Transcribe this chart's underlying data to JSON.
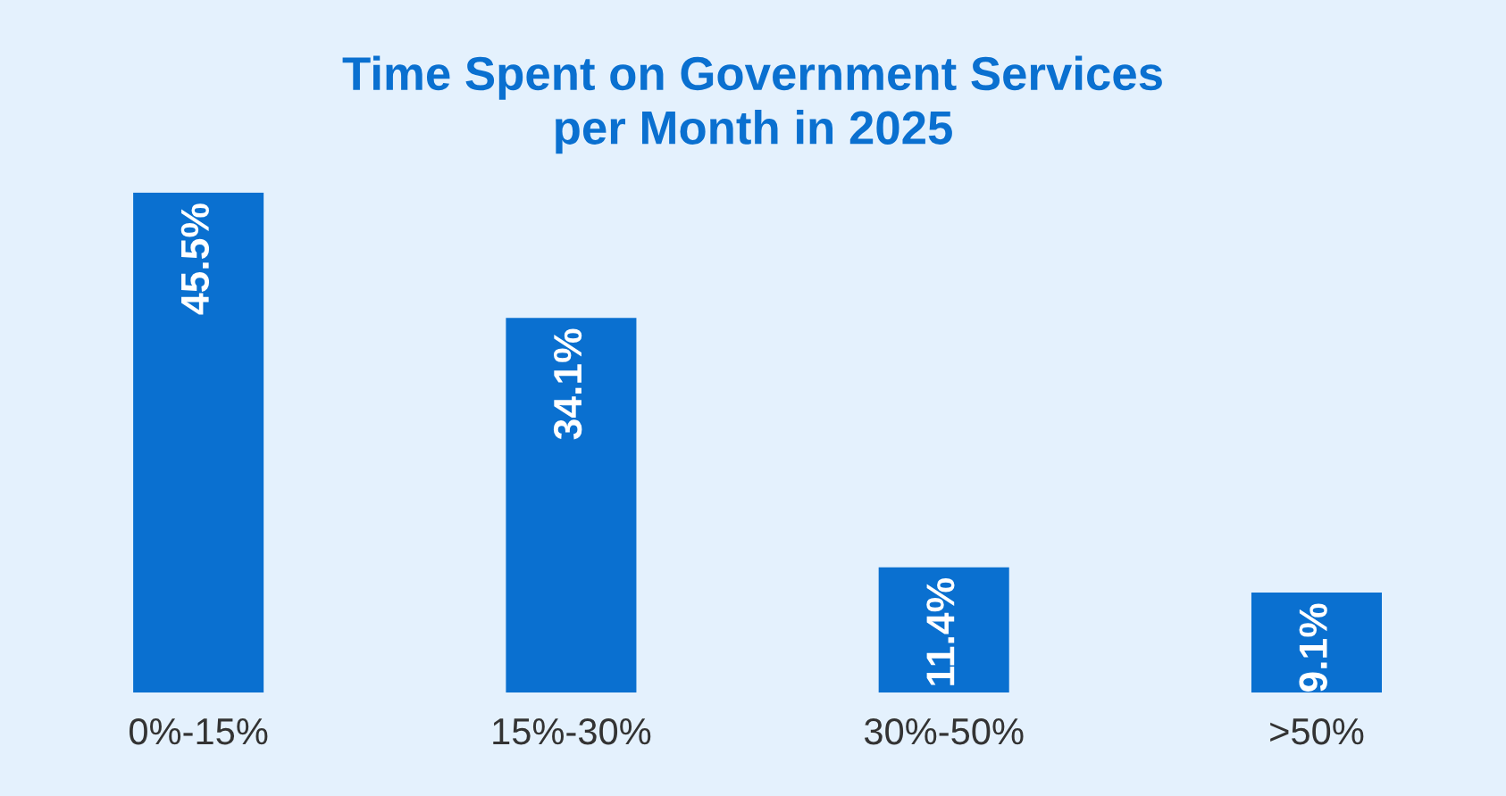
{
  "chart_data": {
    "type": "bar",
    "title": "Time Spent on Government Services\nper Month in 2025",
    "categories": [
      "0%-15%",
      "15%-30%",
      "30%-50%",
      ">50%"
    ],
    "values": [
      45.5,
      34.1,
      11.4,
      9.1
    ],
    "value_labels": [
      "45.5%",
      "34.1%",
      "11.4%",
      "9.1%"
    ],
    "color": "#0a70d0",
    "grid": false,
    "legend": false
  }
}
